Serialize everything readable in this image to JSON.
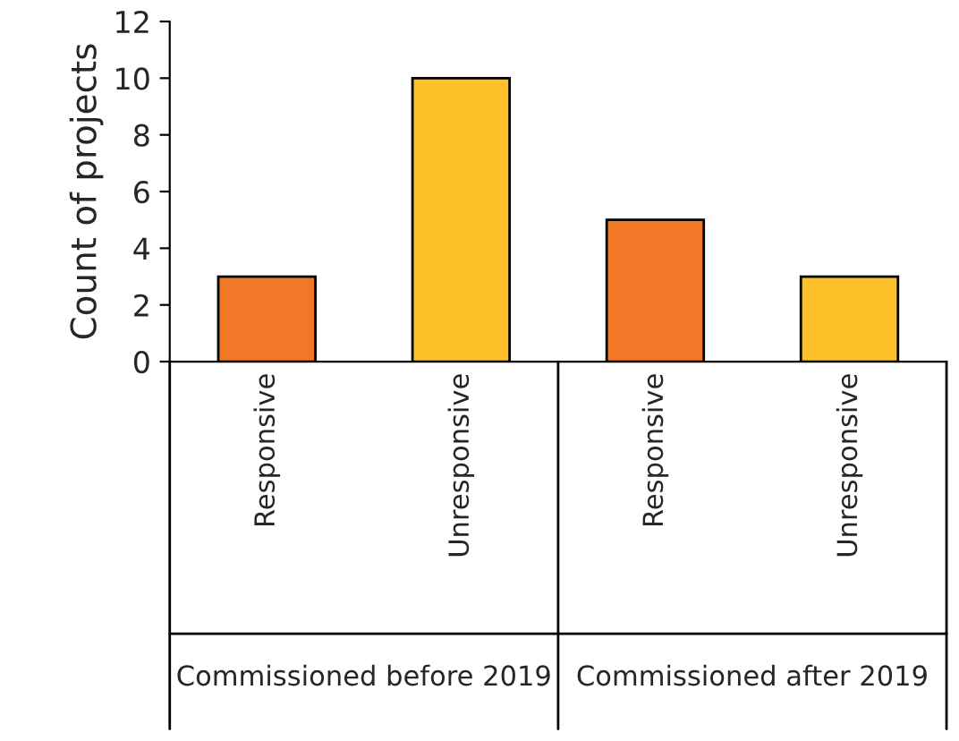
{
  "chart_data": {
    "type": "bar",
    "ylabel": "Count of projects",
    "categories": [
      "Responsive",
      "Unresponsive",
      "Responsive",
      "Unresponsive"
    ],
    "values": [
      3,
      10,
      5,
      3
    ],
    "colors": [
      "#f07827",
      "#ffc12a",
      "#f07827",
      "#ffc12a"
    ],
    "ylim": [
      0,
      12
    ],
    "yticks": [
      0,
      2,
      4,
      6,
      8,
      10,
      12
    ],
    "grid": false,
    "legend": false,
    "annotations": [
      "Commissioned before 2019",
      "Commissioned after 2019"
    ]
  }
}
